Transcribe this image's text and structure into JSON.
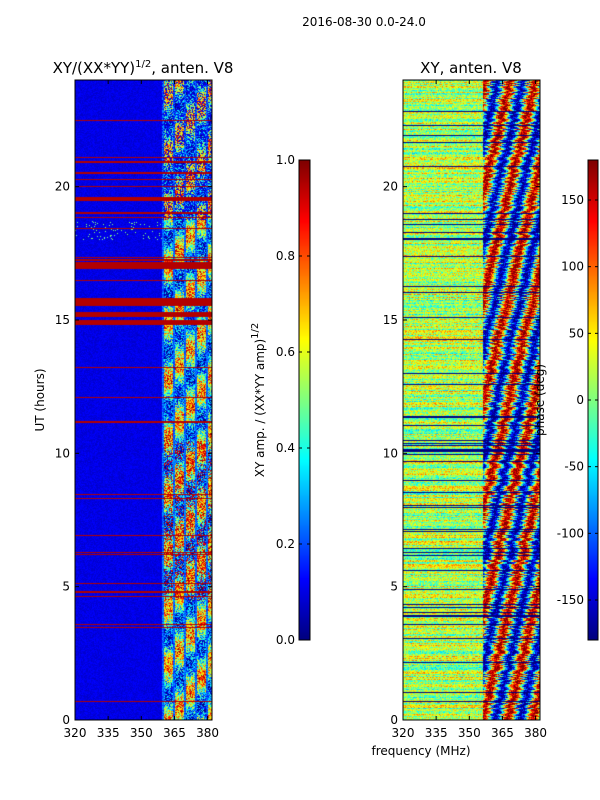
{
  "figure": {
    "suptitle": "2016-08-30 0.0-24.0",
    "xlabel": "frequency (MHz)"
  },
  "chart_data": [
    {
      "type": "heatmap",
      "title_main": "XY/(XX*YY)",
      "title_exp": "1/2",
      "title_tail": ", anten. V8",
      "ylabel": "UT (hours)",
      "x_ticks": [
        "320",
        "335",
        "350",
        "365",
        "380"
      ],
      "x_tick_values": [
        320,
        335,
        350,
        365,
        380
      ],
      "y_ticks": [
        "0",
        "5",
        "10",
        "15",
        "20"
      ],
      "y_tick_values": [
        0,
        5,
        10,
        15,
        20
      ],
      "xlim": [
        320,
        382
      ],
      "ylim": [
        0,
        24
      ],
      "colorbar": {
        "label_main": "XY amp. / (XX*YY amp)",
        "label_exp": "1/2",
        "ticks": [
          "0.0",
          "0.2",
          "0.4",
          "0.6",
          "0.8",
          "1.0"
        ],
        "tick_values": [
          0,
          0.2,
          0.4,
          0.6,
          0.8,
          1.0
        ],
        "range": [
          0,
          1
        ],
        "colormap": "jet"
      }
    },
    {
      "type": "heatmap",
      "title": "XY, anten. V8",
      "x_ticks": [
        "320",
        "335",
        "350",
        "365",
        "380"
      ],
      "x_tick_values": [
        320,
        335,
        350,
        365,
        380
      ],
      "y_ticks": [
        "0",
        "5",
        "10",
        "15",
        "20"
      ],
      "y_tick_values": [
        0,
        5,
        10,
        15,
        20
      ],
      "xlim": [
        320,
        382
      ],
      "ylim": [
        0,
        24
      ],
      "colorbar": {
        "label": "phase (deg)",
        "ticks": [
          "-150",
          "-100",
          "-50",
          "0",
          "50",
          "100",
          "150"
        ],
        "tick_values": [
          -150,
          -100,
          -50,
          0,
          50,
          100,
          150
        ],
        "range": [
          -180,
          180
        ],
        "colormap": "jet"
      }
    }
  ]
}
